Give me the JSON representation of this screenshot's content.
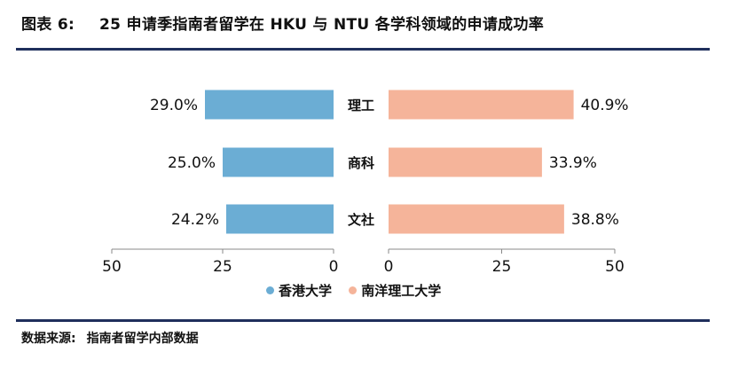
{
  "header": {
    "figure_label": "图表 6:",
    "title": "25 申请季指南者留学在 HKU 与 NTU 各学科领域的申请成功率"
  },
  "footer": {
    "source_label": "数据来源:",
    "source_text": "指南者留学内部数据"
  },
  "colors": {
    "hku": "#6badd4",
    "ntu": "#f5b49a",
    "rule": "#1f2f5c"
  },
  "chart_data": {
    "type": "bar",
    "orientation": "horizontal-butterfly",
    "categories": [
      "理工",
      "商科",
      "文社"
    ],
    "series": [
      {
        "name": "香港大学",
        "values": [
          29.0,
          25.0,
          24.2
        ],
        "labels": [
          "29.0%",
          "25.0%",
          "24.2%"
        ],
        "side": "left"
      },
      {
        "name": "南洋理工大学",
        "values": [
          40.9,
          33.9,
          38.8
        ],
        "labels": [
          "40.9%",
          "33.9%",
          "38.8%"
        ],
        "side": "right"
      }
    ],
    "xlim": [
      0,
      50
    ],
    "left_ticks": [
      "50",
      "25",
      "0"
    ],
    "right_ticks": [
      "0",
      "25",
      "50"
    ],
    "legend_position": "bottom",
    "grid": false
  }
}
